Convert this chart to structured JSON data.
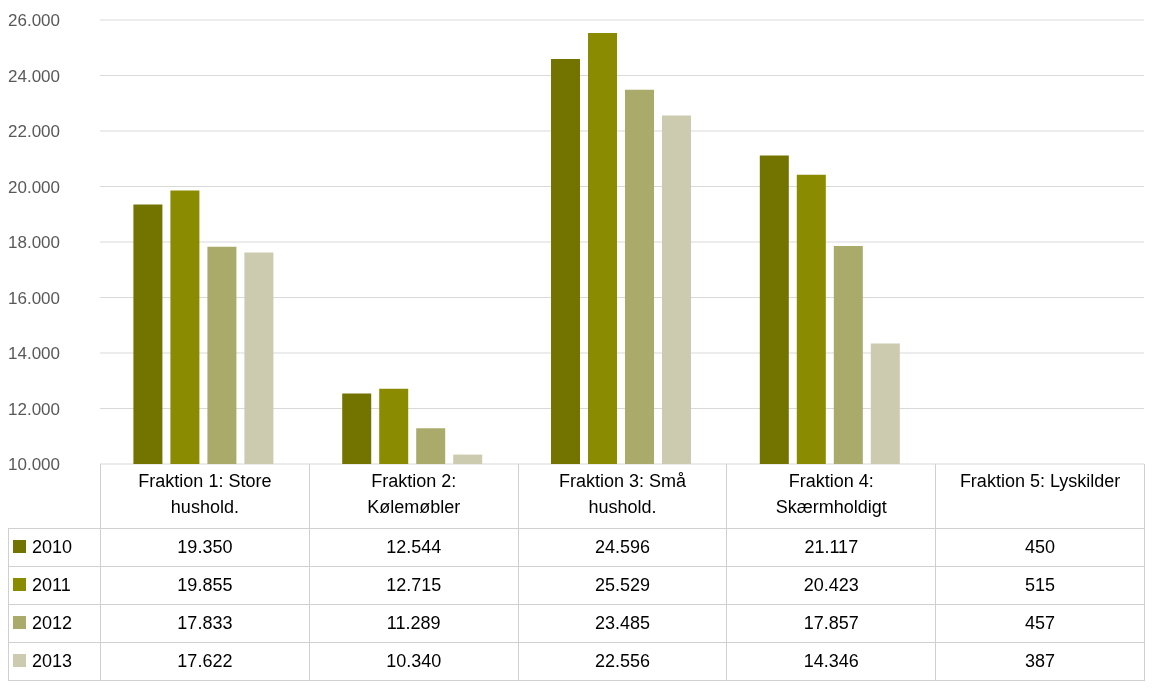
{
  "chart_data": {
    "type": "bar",
    "categories": [
      "Fraktion 1: Store hushold.",
      "Fraktion 2: Kølemøbler",
      "Fraktion 3: Små hushold.",
      "Fraktion 4: Skærmholdigt",
      "Fraktion 5: Lyskilder"
    ],
    "series": [
      {
        "name": "2010",
        "color": "#737300",
        "values": [
          19350,
          12544,
          24596,
          21117,
          null
        ],
        "value_labels": [
          "19.350",
          "12.544",
          "24.596",
          "21.117",
          "450"
        ]
      },
      {
        "name": "2011",
        "color": "#8b8b00",
        "values": [
          19855,
          12715,
          25529,
          20423,
          null
        ],
        "value_labels": [
          "19.855",
          "12.715",
          "25.529",
          "20.423",
          "515"
        ]
      },
      {
        "name": "2012",
        "color": "#aaaa6a",
        "values": [
          17833,
          11289,
          23485,
          17857,
          null
        ],
        "value_labels": [
          "17.833",
          "11.289",
          "23.485",
          "17.857",
          "457"
        ]
      },
      {
        "name": "2013",
        "color": "#cccbb0",
        "values": [
          17622,
          10340,
          22556,
          14346,
          null
        ],
        "value_labels": [
          "17.622",
          "10.340",
          "22.556",
          "14.346",
          "387"
        ]
      }
    ],
    "ylim": [
      10000,
      26000
    ],
    "yticks": [
      {
        "value": 10000,
        "label": "10.000"
      },
      {
        "value": 12000,
        "label": "12.000"
      },
      {
        "value": 14000,
        "label": "14.000"
      },
      {
        "value": 16000,
        "label": "16.000"
      },
      {
        "value": 18000,
        "label": "18.000"
      },
      {
        "value": 20000,
        "label": "20.000"
      },
      {
        "value": 22000,
        "label": "22.000"
      },
      {
        "value": 24000,
        "label": "24.000"
      },
      {
        "value": 26000,
        "label": "26.000"
      }
    ],
    "grid": "y",
    "legend": "bottom"
  }
}
